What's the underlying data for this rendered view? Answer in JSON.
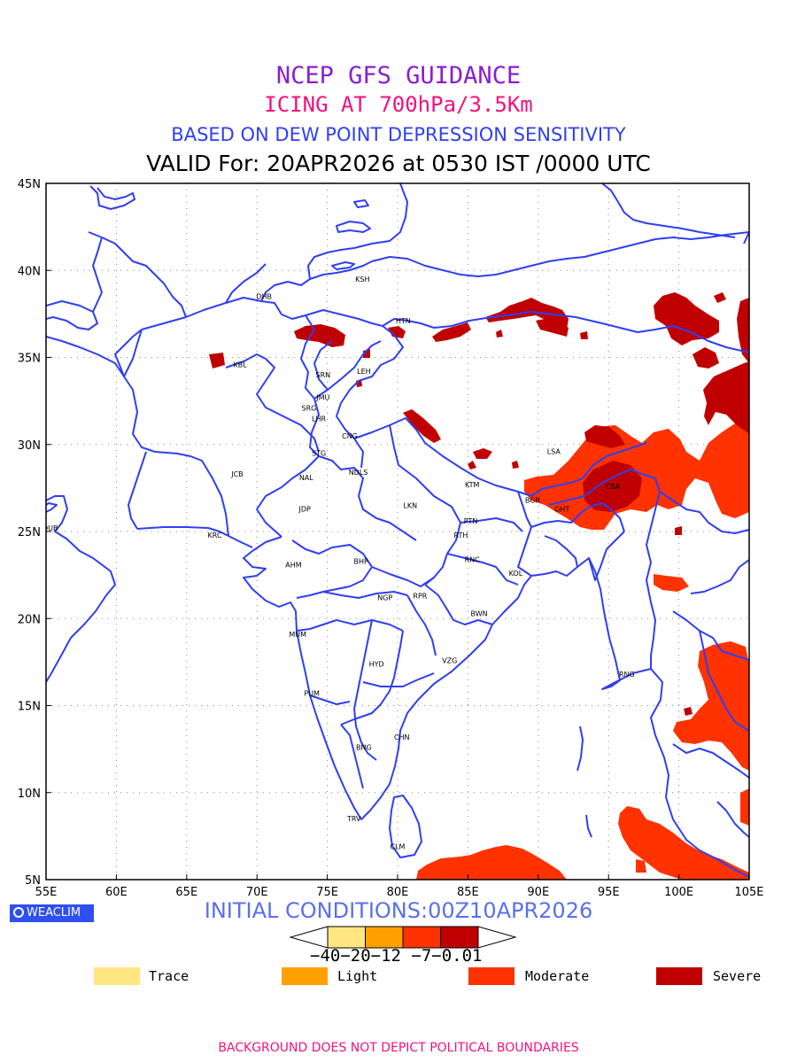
{
  "titles": {
    "line1": "NCEP GFS GUIDANCE",
    "line2": "ICING AT 700hPa/3.5Km",
    "line3": "BASED ON DEW POINT DEPRESSION SENSITIVITY",
    "line4": "VALID For: 20APR2026 at 0530 IST /0000 UTC"
  },
  "axes": {
    "lon_labels": [
      "55E",
      "60E",
      "65E",
      "70E",
      "75E",
      "80E",
      "85E",
      "90E",
      "95E",
      "100E",
      "105E"
    ],
    "lat_labels": [
      "45N",
      "40N",
      "35N",
      "30N",
      "25N",
      "20N",
      "15N",
      "10N",
      "5N"
    ]
  },
  "cities": [
    {
      "name": "KSH",
      "lon": 77.5,
      "lat": 39.5
    },
    {
      "name": "DHB",
      "lon": 70.5,
      "lat": 38.5
    },
    {
      "name": "HTN",
      "lon": 80.4,
      "lat": 37.1
    },
    {
      "name": "KBL",
      "lon": 68.8,
      "lat": 34.6
    },
    {
      "name": "SRN",
      "lon": 74.7,
      "lat": 34.0
    },
    {
      "name": "LEH",
      "lon": 77.6,
      "lat": 34.2
    },
    {
      "name": "JMU",
      "lon": 74.7,
      "lat": 32.7
    },
    {
      "name": "SRG",
      "lon": 73.7,
      "lat": 32.1
    },
    {
      "name": "LHR",
      "lon": 74.4,
      "lat": 31.5
    },
    {
      "name": "CNG",
      "lon": 76.6,
      "lat": 30.5
    },
    {
      "name": "STG",
      "lon": 74.4,
      "lat": 29.5
    },
    {
      "name": "JCB",
      "lon": 68.6,
      "lat": 28.3
    },
    {
      "name": "NAL",
      "lon": 73.5,
      "lat": 28.1
    },
    {
      "name": "NDLS",
      "lon": 77.2,
      "lat": 28.4
    },
    {
      "name": "LSA",
      "lon": 91.1,
      "lat": 29.6
    },
    {
      "name": "KTM",
      "lon": 85.3,
      "lat": 27.7
    },
    {
      "name": "CBA",
      "lon": 95.3,
      "lat": 27.6
    },
    {
      "name": "JDP",
      "lon": 73.4,
      "lat": 26.3
    },
    {
      "name": "LKN",
      "lon": 80.9,
      "lat": 26.5
    },
    {
      "name": "BGR",
      "lon": 89.6,
      "lat": 26.8
    },
    {
      "name": "GHT",
      "lon": 91.7,
      "lat": 26.3
    },
    {
      "name": "DUB",
      "lon": 55.3,
      "lat": 25.2
    },
    {
      "name": "PTN",
      "lon": 85.2,
      "lat": 25.6
    },
    {
      "name": "KRC",
      "lon": 67.0,
      "lat": 24.8
    },
    {
      "name": "RTH",
      "lon": 84.5,
      "lat": 24.8
    },
    {
      "name": "AHM",
      "lon": 72.6,
      "lat": 23.1
    },
    {
      "name": "BHP",
      "lon": 77.4,
      "lat": 23.3
    },
    {
      "name": "RNC",
      "lon": 85.3,
      "lat": 23.4
    },
    {
      "name": "KOL",
      "lon": 88.4,
      "lat": 22.6
    },
    {
      "name": "NGP",
      "lon": 79.1,
      "lat": 21.2
    },
    {
      "name": "RPR",
      "lon": 81.6,
      "lat": 21.3
    },
    {
      "name": "BWN",
      "lon": 85.8,
      "lat": 20.3
    },
    {
      "name": "MUM",
      "lon": 72.9,
      "lat": 19.1
    },
    {
      "name": "HYD",
      "lon": 78.5,
      "lat": 17.4
    },
    {
      "name": "VZG",
      "lon": 83.7,
      "lat": 17.6
    },
    {
      "name": "RNG",
      "lon": 96.3,
      "lat": 16.8
    },
    {
      "name": "PUM",
      "lon": 73.9,
      "lat": 15.7
    },
    {
      "name": "CHN",
      "lon": 80.3,
      "lat": 13.2
    },
    {
      "name": "BNG",
      "lon": 77.6,
      "lat": 12.6
    },
    {
      "name": "TRV",
      "lon": 76.9,
      "lat": 8.5
    },
    {
      "name": "CLM",
      "lon": 80.0,
      "lat": 6.9
    }
  ],
  "brand": "WEACLIM",
  "initial": "INITIAL CONDITIONS:00Z10APR2026",
  "colorbar": {
    "ticks": "−40−20−12 −7−0.01",
    "colors": [
      "#ffe680",
      "#ffa000",
      "#ff3200",
      "#c00000"
    ]
  },
  "legend": [
    {
      "label": "Trace",
      "color": "#ffe680"
    },
    {
      "label": "Light",
      "color": "#ffa000"
    },
    {
      "label": "Moderate",
      "color": "#ff3200"
    },
    {
      "label": "Severe",
      "color": "#c00000"
    }
  ],
  "footer": "BACKGROUND DOES NOT DEPICT POLITICAL BOUNDARIES",
  "colors": {
    "boundary": "#2f3ff0",
    "moderate": "#ff3200",
    "severe": "#c00000"
  }
}
